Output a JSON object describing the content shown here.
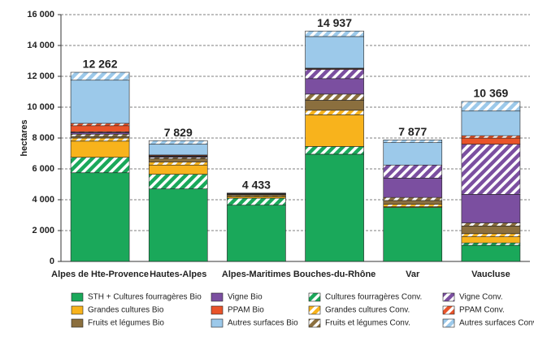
{
  "chart_data": {
    "type": "stacked_bar",
    "y_label": "hectares",
    "categories": [
      "Alpes de Hte-Provence",
      "Hautes-Alpes",
      "Alpes-Maritimes",
      "Bouches-du-Rhône",
      "Var",
      "Vaucluse"
    ],
    "series": [
      {
        "name": "STH + Cultures fourragères Bio",
        "color": "#1aa85a",
        "hatched": false,
        "values": [
          5750,
          4700,
          3650,
          6950,
          3500,
          1050
        ]
      },
      {
        "name": "Cultures fourragères Conv.",
        "color": "#1aa85a",
        "hatched": true,
        "values": [
          1000,
          950,
          450,
          500,
          0,
          150
        ]
      },
      {
        "name": "Grandes cultures Bio",
        "color": "#f8b31c",
        "hatched": false,
        "values": [
          1050,
          600,
          100,
          2050,
          50,
          400
        ]
      },
      {
        "name": "Grandes cultures Conv.",
        "color": "#f8b31c",
        "hatched": true,
        "values": [
          200,
          200,
          50,
          300,
          150,
          200
        ]
      },
      {
        "name": "Fruits et légumes Bio",
        "color": "#8b6f3e",
        "hatched": false,
        "values": [
          100,
          200,
          80,
          650,
          250,
          500
        ]
      },
      {
        "name": "Fruits et légumes Conv.",
        "color": "#8b6f3e",
        "hatched": true,
        "values": [
          150,
          100,
          20,
          400,
          200,
          200
        ]
      },
      {
        "name": "Vigne Bio",
        "color": "#7b4fa0",
        "hatched": false,
        "values": [
          100,
          50,
          10,
          1000,
          1250,
          1850
        ]
      },
      {
        "name": "Vigne Conv.",
        "color": "#7b4fa0",
        "hatched": true,
        "values": [
          50,
          30,
          5,
          600,
          850,
          3250
        ]
      },
      {
        "name": "PPAM Bio",
        "color": "#e9542a",
        "hatched": false,
        "values": [
          400,
          50,
          30,
          50,
          0,
          400
        ]
      },
      {
        "name": "PPAM Conv.",
        "color": "#e9542a",
        "hatched": true,
        "values": [
          150,
          20,
          10,
          30,
          0,
          150
        ]
      },
      {
        "name": "Autres surfaces Bio",
        "color": "#9cc9ea",
        "hatched": false,
        "values": [
          2800,
          700,
          20,
          2050,
          1450,
          1600
        ]
      },
      {
        "name": "Autres surfaces Conv",
        "color": "#9cc9ea",
        "hatched": true,
        "values": [
          512,
          229,
          8,
          357,
          177,
          619
        ]
      }
    ],
    "totals": {
      "values": [
        12262,
        7829,
        4433,
        14937,
        7877,
        10369
      ],
      "value_labels": [
        "12 262",
        "7 829",
        "4 433",
        "14 937",
        "7 877",
        "10 369"
      ]
    },
    "ylim": [
      0,
      16000
    ],
    "yticks": [
      0,
      {
        "value": 2000,
        "label": "2 000"
      },
      {
        "value": 4000,
        "label": "4 000"
      },
      {
        "value": 6000,
        "label": "6 000"
      },
      {
        "value": 8000,
        "label": "8 000"
      },
      {
        "value": 10000,
        "label": "10 000"
      },
      {
        "value": 12000,
        "label": "12 000"
      },
      {
        "value": 14000,
        "label": "14 000"
      },
      {
        "value": 16000,
        "label": "16 000"
      }
    ],
    "grid": true
  }
}
